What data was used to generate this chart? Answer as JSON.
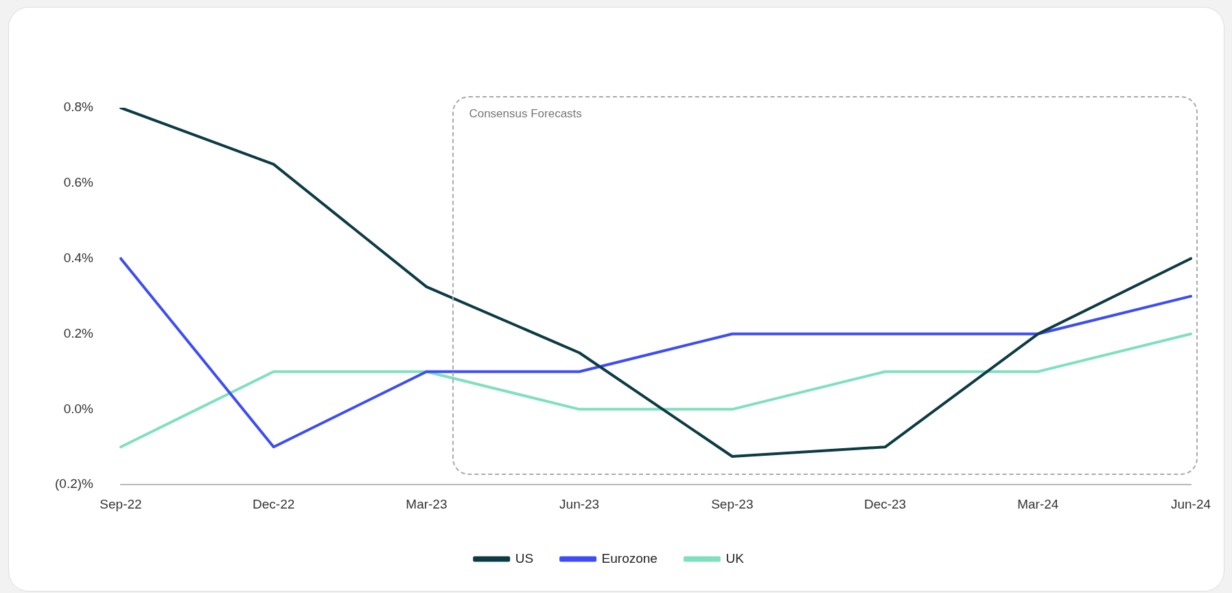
{
  "chart_data": {
    "type": "line",
    "categories": [
      "Sep-22",
      "Dec-22",
      "Mar-23",
      "Jun-23",
      "Sep-23",
      "Dec-23",
      "Mar-24",
      "Jun-24"
    ],
    "series": [
      {
        "name": "US",
        "color": "#0d3b44",
        "values": [
          0.8,
          0.65,
          0.325,
          0.15,
          -0.125,
          -0.1,
          0.2,
          0.4
        ]
      },
      {
        "name": "Eurozone",
        "color": "#3d4cf5",
        "values": [
          0.4,
          -0.1,
          0.1,
          0.1,
          0.2,
          0.2,
          0.2,
          0.3
        ]
      },
      {
        "name": "UK",
        "color": "#7fe0c0",
        "values": [
          -0.1,
          0.1,
          0.1,
          0.0,
          0.0,
          0.1,
          0.1,
          0.2
        ]
      }
    ],
    "ylim": [
      -0.2,
      0.8
    ],
    "yticks": [
      {
        "value": -0.2,
        "label": "(0.2)%"
      },
      {
        "value": 0,
        "label": "0.0%"
      },
      {
        "value": 0.2,
        "label": "0.2%"
      },
      {
        "value": 0.4,
        "label": "0.4%"
      },
      {
        "value": 0.6,
        "label": "0.6%"
      },
      {
        "value": 0.8,
        "label": "0.8%"
      }
    ],
    "annotations": [
      "Consensus Forecasts"
    ],
    "grid": false,
    "legend": "bottom",
    "marker": "none",
    "line_style": "solid"
  }
}
